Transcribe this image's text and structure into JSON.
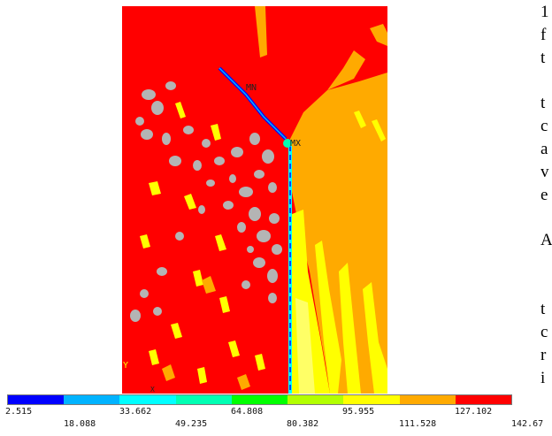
{
  "plot": {
    "min_label": "MN",
    "max_label": "MX",
    "axis_y_label": "Y",
    "axis_x_label": "X",
    "colors": {
      "red": "#ff0000",
      "orange": "#ffaa00",
      "yellow": "#ffff00",
      "light_yellow": "#ffff66",
      "gray": "#b4b4b4",
      "blue": "#0000ff",
      "cyan": "#00ffff"
    }
  },
  "colorbar": {
    "colors": [
      "#0000ff",
      "#00b3ff",
      "#00ffff",
      "#00ffb3",
      "#00ff00",
      "#b3ff00",
      "#ffff00",
      "#ffaa00",
      "#ff0000"
    ],
    "labels_top": [
      "2.515",
      "33.662",
      "64.808",
      "95.955",
      "127.102"
    ],
    "labels_bottom": [
      "18.088",
      "49.235",
      "80.382",
      "111.528",
      "142.67"
    ]
  },
  "side_text": [
    "1",
    "f",
    "t",
    "t",
    "c",
    "a",
    "v",
    "e",
    "A",
    "t",
    "c",
    "r",
    "i"
  ]
}
